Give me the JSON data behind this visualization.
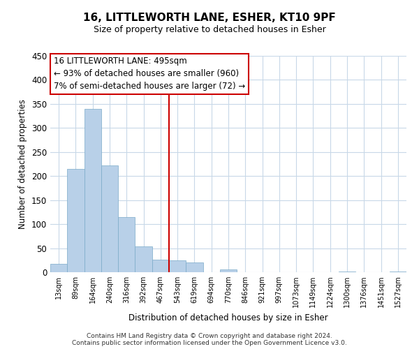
{
  "title1": "16, LITTLEWORTH LANE, ESHER, KT10 9PF",
  "title2": "Size of property relative to detached houses in Esher",
  "bar_labels": [
    "13sqm",
    "89sqm",
    "164sqm",
    "240sqm",
    "316sqm",
    "392sqm",
    "467sqm",
    "543sqm",
    "619sqm",
    "694sqm",
    "770sqm",
    "846sqm",
    "921sqm",
    "997sqm",
    "1073sqm",
    "1149sqm",
    "1224sqm",
    "1300sqm",
    "1376sqm",
    "1451sqm",
    "1527sqm"
  ],
  "bar_values": [
    18,
    215,
    340,
    222,
    114,
    53,
    26,
    25,
    20,
    0,
    6,
    0,
    0,
    0,
    0,
    0,
    0,
    2,
    0,
    0,
    2
  ],
  "bar_color": "#b8d0e8",
  "bar_edge_color": "#7aaac8",
  "vline_x_idx": 7,
  "vline_color": "#cc0000",
  "ylabel": "Number of detached properties",
  "xlabel": "Distribution of detached houses by size in Esher",
  "ylim": [
    0,
    450
  ],
  "yticks": [
    0,
    50,
    100,
    150,
    200,
    250,
    300,
    350,
    400,
    450
  ],
  "annotation_title": "16 LITTLEWORTH LANE: 495sqm",
  "annotation_line1": "← 93% of detached houses are smaller (960)",
  "annotation_line2": "7% of semi-detached houses are larger (72) →",
  "annotation_box_color": "#ffffff",
  "annotation_box_edge": "#cc0000",
  "footer1": "Contains HM Land Registry data © Crown copyright and database right 2024.",
  "footer2": "Contains public sector information licensed under the Open Government Licence v3.0.",
  "bg_color": "#ffffff",
  "grid_color": "#c8d8e8"
}
